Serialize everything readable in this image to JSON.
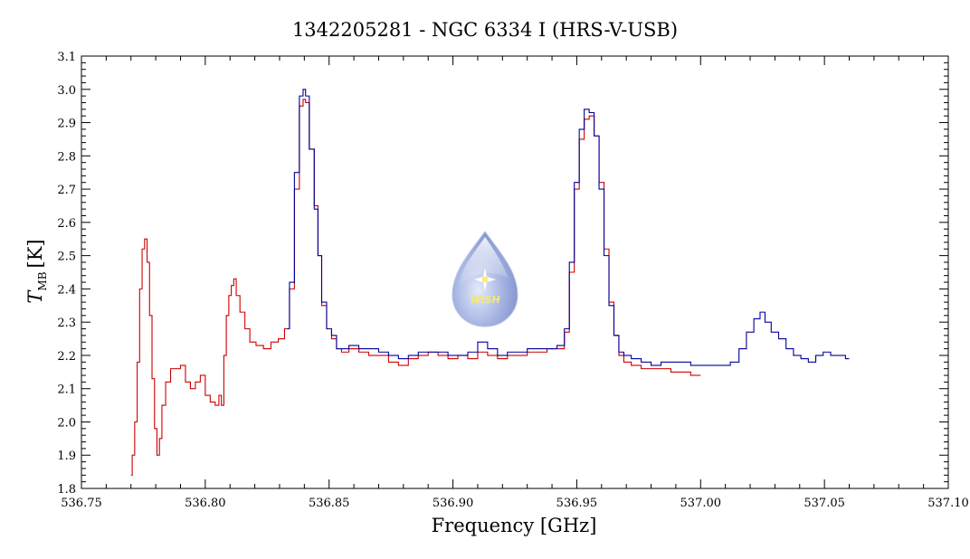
{
  "chart_data": {
    "type": "line",
    "title": "1342205281 - NGC 6334 I (HRS-V-USB)",
    "xlabel": "Frequency [GHz]",
    "ylabel_main": "T",
    "ylabel_sub": "MB",
    "ylabel_unit": "[K]",
    "xlim": [
      536.75,
      537.1
    ],
    "ylim": [
      1.8,
      3.1
    ],
    "xticks": [
      536.75,
      536.8,
      536.85,
      536.9,
      536.95,
      537.0,
      537.05,
      537.1
    ],
    "xtick_labels": [
      "536.75",
      "536.80",
      "536.85",
      "536.90",
      "536.95",
      "537.00",
      "537.05",
      "537.10"
    ],
    "yticks": [
      1.8,
      1.9,
      2.0,
      2.1,
      2.2,
      2.3,
      2.4,
      2.5,
      2.6,
      2.7,
      2.8,
      2.9,
      3.0,
      3.1
    ],
    "ytick_labels": [
      "1.8",
      "1.9",
      "2.0",
      "2.1",
      "2.2",
      "2.3",
      "2.4",
      "2.5",
      "2.6",
      "2.7",
      "2.8",
      "2.9",
      "3.0",
      "3.1"
    ],
    "grid": false,
    "logo_text": "WISH",
    "series": [
      {
        "color": "#cc0000",
        "points": [
          [
            536.77,
            1.84
          ],
          [
            536.771,
            1.9
          ],
          [
            536.772,
            2.0
          ],
          [
            536.773,
            2.18
          ],
          [
            536.774,
            2.4
          ],
          [
            536.775,
            2.52
          ],
          [
            536.776,
            2.55
          ],
          [
            536.777,
            2.48
          ],
          [
            536.778,
            2.32
          ],
          [
            536.779,
            2.13
          ],
          [
            536.78,
            1.98
          ],
          [
            536.781,
            1.9
          ],
          [
            536.782,
            1.95
          ],
          [
            536.783,
            2.05
          ],
          [
            536.785,
            2.12
          ],
          [
            536.787,
            2.16
          ],
          [
            536.789,
            2.16
          ],
          [
            536.791,
            2.17
          ],
          [
            536.793,
            2.12
          ],
          [
            536.795,
            2.1
          ],
          [
            536.797,
            2.12
          ],
          [
            536.799,
            2.14
          ],
          [
            536.801,
            2.08
          ],
          [
            536.803,
            2.06
          ],
          [
            536.805,
            2.05
          ],
          [
            536.806,
            2.08
          ],
          [
            536.807,
            2.05
          ],
          [
            536.808,
            2.2
          ],
          [
            536.809,
            2.32
          ],
          [
            536.81,
            2.38
          ],
          [
            536.811,
            2.41
          ],
          [
            536.812,
            2.43
          ],
          [
            536.813,
            2.38
          ],
          [
            536.815,
            2.33
          ],
          [
            536.817,
            2.28
          ],
          [
            536.819,
            2.24
          ],
          [
            536.822,
            2.23
          ],
          [
            536.825,
            2.22
          ],
          [
            536.828,
            2.24
          ],
          [
            536.831,
            2.25
          ],
          [
            536.833,
            2.28
          ],
          [
            536.835,
            2.4
          ],
          [
            536.837,
            2.7
          ],
          [
            536.839,
            2.95
          ],
          [
            536.84,
            2.97
          ],
          [
            536.841,
            2.96
          ],
          [
            536.843,
            2.82
          ],
          [
            536.845,
            2.65
          ],
          [
            536.846,
            2.5
          ],
          [
            536.848,
            2.35
          ],
          [
            536.85,
            2.28
          ],
          [
            536.852,
            2.25
          ],
          [
            536.854,
            2.22
          ],
          [
            536.856,
            2.21
          ],
          [
            536.86,
            2.22
          ],
          [
            536.864,
            2.21
          ],
          [
            536.868,
            2.2
          ],
          [
            536.872,
            2.2
          ],
          [
            536.876,
            2.18
          ],
          [
            536.88,
            2.17
          ],
          [
            536.884,
            2.19
          ],
          [
            536.888,
            2.2
          ],
          [
            536.892,
            2.21
          ],
          [
            536.896,
            2.2
          ],
          [
            536.9,
            2.19
          ],
          [
            536.904,
            2.2
          ],
          [
            536.908,
            2.19
          ],
          [
            536.912,
            2.21
          ],
          [
            536.916,
            2.2
          ],
          [
            536.92,
            2.19
          ],
          [
            536.924,
            2.2
          ],
          [
            536.928,
            2.2
          ],
          [
            536.932,
            2.21
          ],
          [
            536.936,
            2.21
          ],
          [
            536.94,
            2.22
          ],
          [
            536.944,
            2.22
          ],
          [
            536.946,
            2.27
          ],
          [
            536.948,
            2.45
          ],
          [
            536.95,
            2.7
          ],
          [
            536.952,
            2.85
          ],
          [
            536.954,
            2.91
          ],
          [
            536.956,
            2.92
          ],
          [
            536.958,
            2.86
          ],
          [
            536.96,
            2.72
          ],
          [
            536.962,
            2.52
          ],
          [
            536.964,
            2.36
          ],
          [
            536.966,
            2.26
          ],
          [
            536.968,
            2.2
          ],
          [
            536.97,
            2.18
          ],
          [
            536.974,
            2.17
          ],
          [
            536.978,
            2.16
          ],
          [
            536.982,
            2.16
          ],
          [
            536.986,
            2.16
          ],
          [
            536.99,
            2.15
          ],
          [
            536.994,
            2.15
          ],
          [
            536.998,
            2.14
          ],
          [
            537.0,
            2.14
          ]
        ]
      },
      {
        "color": "#000099",
        "points": [
          [
            536.833,
            2.28
          ],
          [
            536.835,
            2.42
          ],
          [
            536.837,
            2.75
          ],
          [
            536.839,
            2.98
          ],
          [
            536.84,
            3.0
          ],
          [
            536.841,
            2.98
          ],
          [
            536.843,
            2.82
          ],
          [
            536.845,
            2.64
          ],
          [
            536.846,
            2.5
          ],
          [
            536.848,
            2.36
          ],
          [
            536.85,
            2.28
          ],
          [
            536.852,
            2.26
          ],
          [
            536.854,
            2.22
          ],
          [
            536.856,
            2.22
          ],
          [
            536.86,
            2.23
          ],
          [
            536.864,
            2.22
          ],
          [
            536.868,
            2.22
          ],
          [
            536.872,
            2.21
          ],
          [
            536.876,
            2.2
          ],
          [
            536.88,
            2.19
          ],
          [
            536.884,
            2.2
          ],
          [
            536.888,
            2.21
          ],
          [
            536.892,
            2.21
          ],
          [
            536.896,
            2.21
          ],
          [
            536.9,
            2.2
          ],
          [
            536.904,
            2.2
          ],
          [
            536.908,
            2.21
          ],
          [
            536.912,
            2.24
          ],
          [
            536.916,
            2.22
          ],
          [
            536.92,
            2.2
          ],
          [
            536.924,
            2.21
          ],
          [
            536.928,
            2.21
          ],
          [
            536.932,
            2.22
          ],
          [
            536.936,
            2.22
          ],
          [
            536.94,
            2.22
          ],
          [
            536.944,
            2.23
          ],
          [
            536.946,
            2.28
          ],
          [
            536.948,
            2.48
          ],
          [
            536.95,
            2.72
          ],
          [
            536.952,
            2.88
          ],
          [
            536.954,
            2.94
          ],
          [
            536.956,
            2.93
          ],
          [
            536.958,
            2.86
          ],
          [
            536.96,
            2.7
          ],
          [
            536.962,
            2.5
          ],
          [
            536.964,
            2.35
          ],
          [
            536.966,
            2.26
          ],
          [
            536.968,
            2.21
          ],
          [
            536.97,
            2.2
          ],
          [
            536.974,
            2.19
          ],
          [
            536.978,
            2.18
          ],
          [
            536.982,
            2.17
          ],
          [
            536.986,
            2.18
          ],
          [
            536.99,
            2.18
          ],
          [
            536.994,
            2.18
          ],
          [
            536.998,
            2.17
          ],
          [
            537.002,
            2.17
          ],
          [
            537.006,
            2.17
          ],
          [
            537.01,
            2.17
          ],
          [
            537.014,
            2.18
          ],
          [
            537.017,
            2.22
          ],
          [
            537.02,
            2.27
          ],
          [
            537.023,
            2.31
          ],
          [
            537.025,
            2.33
          ],
          [
            537.027,
            2.3
          ],
          [
            537.03,
            2.27
          ],
          [
            537.033,
            2.25
          ],
          [
            537.036,
            2.22
          ],
          [
            537.039,
            2.2
          ],
          [
            537.042,
            2.19
          ],
          [
            537.045,
            2.18
          ],
          [
            537.048,
            2.2
          ],
          [
            537.051,
            2.21
          ],
          [
            537.054,
            2.2
          ],
          [
            537.057,
            2.2
          ],
          [
            537.06,
            2.19
          ]
        ]
      }
    ]
  }
}
